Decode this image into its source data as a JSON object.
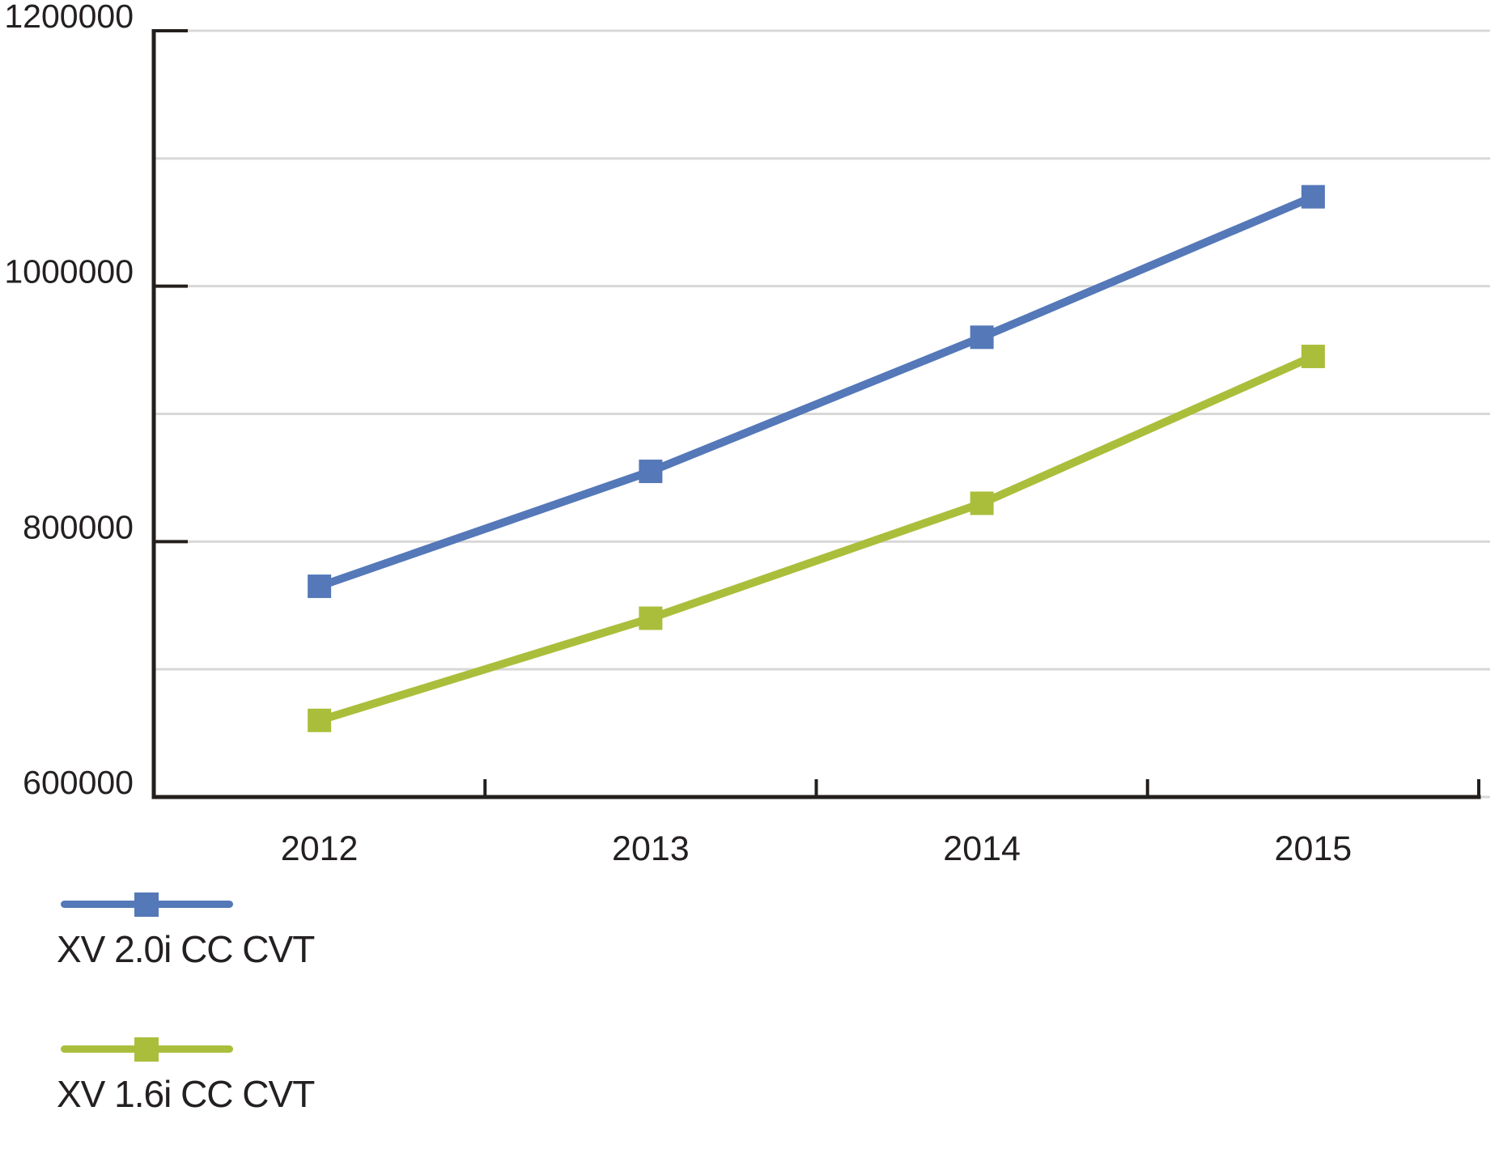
{
  "chart_data": {
    "type": "line",
    "title": "",
    "xlabel": "",
    "ylabel": "",
    "categories": [
      "2012",
      "2013",
      "2014",
      "2015"
    ],
    "series": [
      {
        "name": "XV 2.0i CC CVT",
        "color": "#5478B8",
        "marker": "square",
        "values": [
          765000,
          855000,
          960000,
          1070000
        ]
      },
      {
        "name": "XV 1.6i CC CVT",
        "color": "#ABBE3B",
        "marker": "square",
        "values": [
          660000,
          740000,
          830000,
          945000
        ]
      }
    ],
    "ylim": [
      600000,
      1200000
    ],
    "y_tick_labels": [
      "600000",
      "800000",
      "1000000",
      "1200000"
    ],
    "y_label_step": 200000,
    "y_grid_step": 100000,
    "grid": true,
    "legend_position": "bottom-left"
  },
  "colors": {
    "axis": "#231F1C",
    "text": "#242021",
    "gridline": "#D8D8D8",
    "background": "#FFFFFF"
  }
}
